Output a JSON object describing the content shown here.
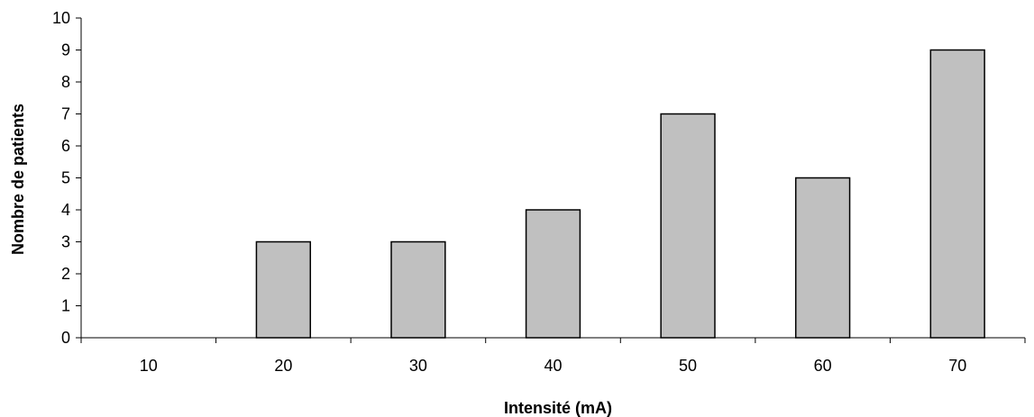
{
  "chart_data": {
    "type": "bar",
    "categories": [
      "10",
      "20",
      "30",
      "40",
      "50",
      "60",
      "70"
    ],
    "values": [
      0,
      3,
      3,
      4,
      7,
      5,
      9
    ],
    "title": "",
    "xlabel": "Intensité (mA)",
    "ylabel": "Nombre de patients",
    "ylim": [
      0,
      10
    ],
    "yticks": [
      "0",
      "1",
      "2",
      "3",
      "4",
      "5",
      "6",
      "7",
      "8",
      "9",
      "10"
    ],
    "grid": false,
    "legend": "none",
    "bar_color": "#c0c0c0",
    "bar_edge_color": "#000000"
  }
}
